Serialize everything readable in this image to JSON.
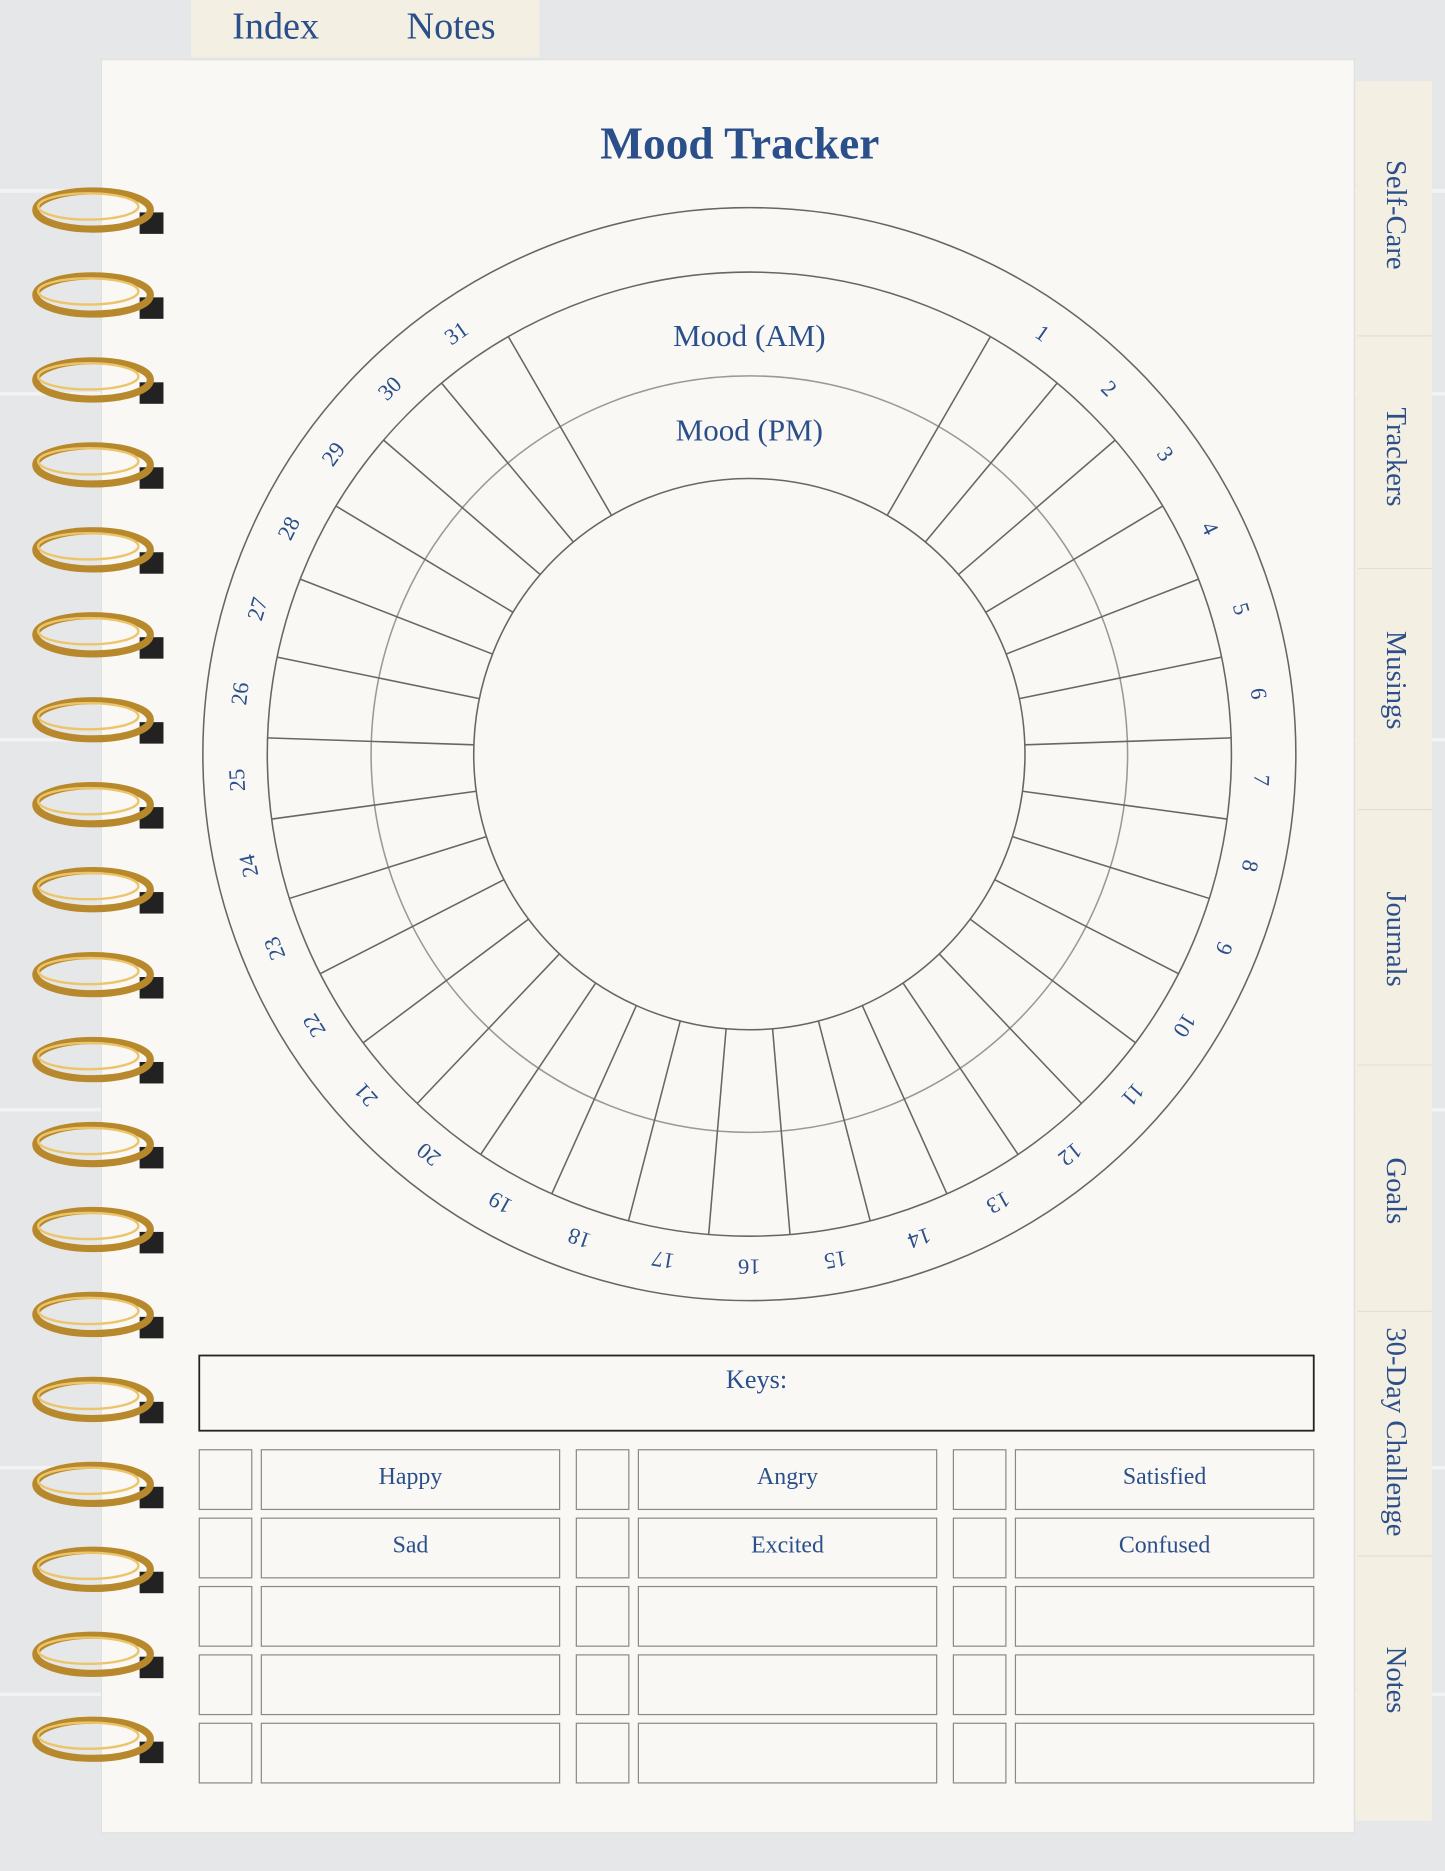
{
  "top_tabs": [
    "Index",
    "Notes"
  ],
  "side_tabs": [
    "Self-Care",
    "Trackers",
    "Musings",
    "Journals",
    "Goals",
    "30-Day Challenge",
    "Notes"
  ],
  "title": "Mood Tracker",
  "ring_labels": [
    "Mood (AM)",
    "Mood (PM)"
  ],
  "days": [
    1,
    2,
    3,
    4,
    5,
    6,
    7,
    8,
    9,
    10,
    11,
    12,
    13,
    14,
    15,
    16,
    17,
    18,
    19,
    20,
    21,
    22,
    23,
    24,
    25,
    26,
    27,
    28,
    29,
    30,
    31
  ],
  "keys": {
    "label": "Keys:",
    "rows": [
      [
        "Happy",
        "Angry",
        "Satisfied"
      ],
      [
        "Sad",
        "Excited",
        "Confused"
      ]
    ]
  }
}
